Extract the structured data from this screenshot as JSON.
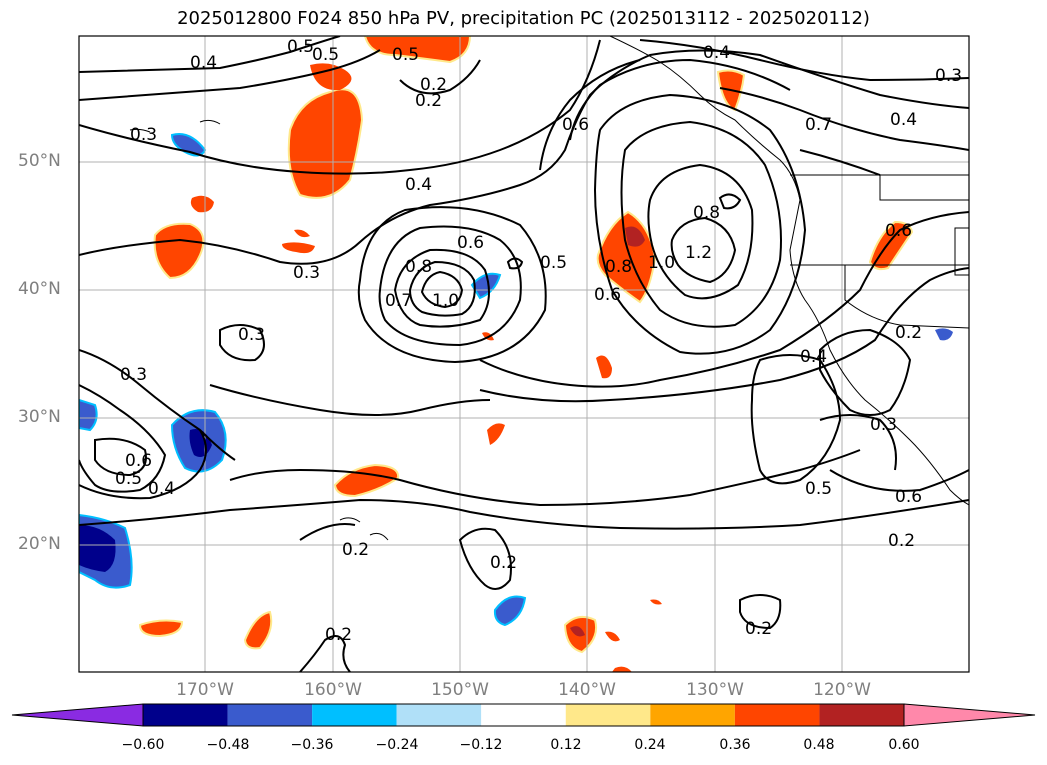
{
  "title": "2025012800 F024 850 hPa PV, precipitation PC (2025013112 - 2025020112)",
  "lat_labels": [
    "50°N",
    "40°N",
    "30°N",
    "20°N"
  ],
  "lon_labels": [
    "170°W",
    "160°W",
    "150°W",
    "140°W",
    "130°W",
    "120°W"
  ],
  "contour_labels": [
    "0.5",
    "0.5",
    "0.5",
    "0.4",
    "0.2",
    "0.4",
    "0.3",
    "0.3",
    "0.4",
    "0.3",
    "0.3",
    "0.6",
    "0.8",
    "1.0",
    "0.7",
    "0.5",
    "0.6",
    "0.8",
    "1.0",
    "1.2",
    "0.8",
    "0.6",
    "0.7",
    "0.4",
    "0.6",
    "0.3",
    "0.6",
    "0.5",
    "0.4",
    "0.2",
    "0.2",
    "0.2",
    "0.2",
    "0.3",
    "0.4",
    "0.2",
    "0.5",
    "0.6",
    "0.2",
    "0.2"
  ],
  "colorbar": {
    "ticks": [
      "−0.60",
      "−0.48",
      "−0.36",
      "−0.24",
      "−0.12",
      "0.12",
      "0.24",
      "0.36",
      "0.48",
      "0.60"
    ],
    "colors": [
      "#8a2be2",
      "#00008b",
      "#3a5bcd",
      "#00bfff",
      "#b0e0f8",
      "#ffffff",
      "#ffe88a",
      "#ffa500",
      "#ff4500",
      "#b22222",
      "#ff88aa"
    ]
  }
}
